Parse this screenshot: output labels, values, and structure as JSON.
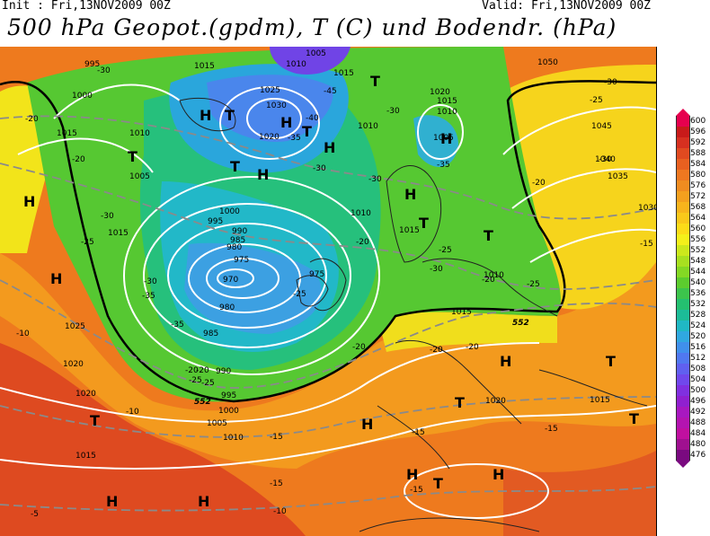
{
  "header": {
    "init": "Init : Fri,13NOV2009 00Z",
    "valid": "Valid: Fri,13NOV2009 00Z",
    "title": "500 hPa Geopot.(gpdm), T (C) und Bodendr. (hPa)"
  },
  "legend": {
    "levels": [
      "600",
      "596",
      "592",
      "588",
      "584",
      "580",
      "576",
      "572",
      "568",
      "564",
      "560",
      "556",
      "552",
      "548",
      "544",
      "540",
      "536",
      "532",
      "528",
      "524",
      "520",
      "516",
      "512",
      "508",
      "504",
      "500",
      "496",
      "492",
      "488",
      "484",
      "480",
      "476"
    ],
    "colors": [
      "#e6004e",
      "#c81a1a",
      "#d63020",
      "#e04a20",
      "#e86020",
      "#ee7820",
      "#f08c20",
      "#f4a01e",
      "#f8b41c",
      "#fac81a",
      "#fcdc18",
      "#f4f01a",
      "#cce81c",
      "#a8e020",
      "#84d824",
      "#5ccc2e",
      "#3cc44c",
      "#24c070",
      "#1cbc98",
      "#20b8c4",
      "#30a8e0",
      "#4090ec",
      "#5078f0",
      "#6060f0",
      "#7048ec",
      "#8030e0",
      "#9020d0",
      "#a818c0",
      "#b414b0",
      "#c010a0",
      "#a01090",
      "#7a0a80"
    ]
  },
  "map": {
    "pressure_labels": [
      "995",
      "1000",
      "1015",
      "1010",
      "1005",
      "1025",
      "1030",
      "1020",
      "1015",
      "1010",
      "1005",
      "1050",
      "1045",
      "1040",
      "1035",
      "1030",
      "1020",
      "1015",
      "1010",
      "1000",
      "995",
      "990",
      "985",
      "980",
      "975",
      "970",
      "975",
      "980",
      "985",
      "990",
      "995",
      "1000",
      "1005",
      "1010",
      "1015",
      "1020",
      "1025",
      "1015",
      "1010",
      "1005",
      "1020",
      "1015",
      "1010",
      "1015",
      "1020",
      "1010",
      "1015",
      "1015"
    ],
    "temp_labels": [
      "-30",
      "-20",
      "-20",
      "-25",
      "-30",
      "-35",
      "-45",
      "-40",
      "-35",
      "-30",
      "-30",
      "-30",
      "-35",
      "-30",
      "-25",
      "-20",
      "-30",
      "-25",
      "-20",
      "-15",
      "-20",
      "-25",
      "-20",
      "-20",
      "-35",
      "-30",
      "-25",
      "-20",
      "-15",
      "-10",
      "-5",
      "-10",
      "-15",
      "-15",
      "-15",
      "-20",
      "-25",
      "-30",
      "-25",
      "-20",
      "-15",
      "-10"
    ],
    "pressure_centers": [
      "H",
      "H",
      "H",
      "H",
      "T",
      "T",
      "T",
      "H",
      "T",
      "T",
      "H",
      "T",
      "T",
      "H",
      "H",
      "T",
      "T",
      "H",
      "H",
      "T",
      "H",
      "H",
      "T",
      "H",
      "T",
      "H"
    ],
    "contour_tags": [
      "552",
      "552"
    ]
  }
}
